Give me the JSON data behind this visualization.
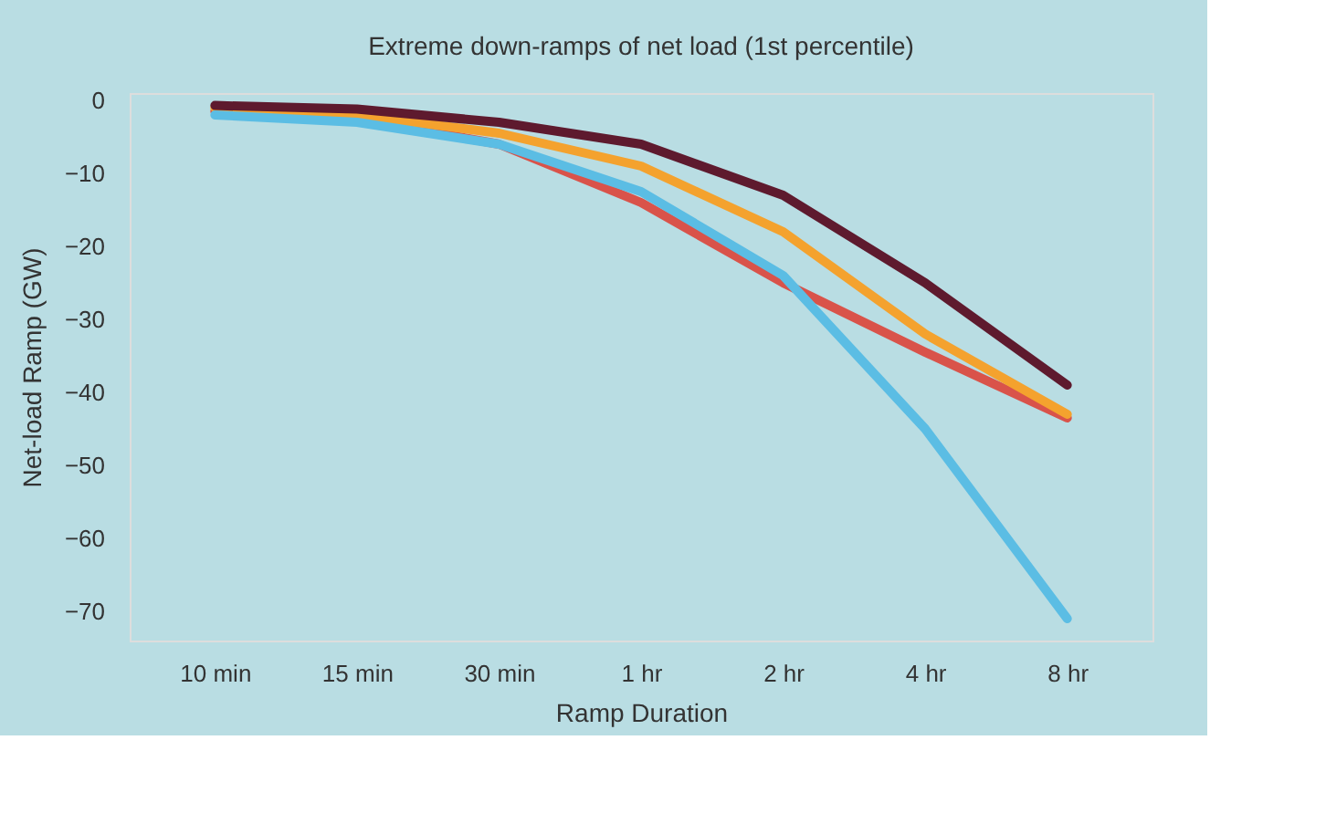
{
  "chart_data": {
    "type": "line",
    "title": "Extreme down-ramps of net load (1st percentile)",
    "xlabel": "Ramp Duration",
    "ylabel": "Net-load Ramp (GW)",
    "categories": [
      "10 min",
      "15 min",
      "30 min",
      "1 hr",
      "2 hr",
      "4 hr",
      "8 hr"
    ],
    "series": [
      {
        "color": "#d9534a",
        "values": [
          -1.5,
          -2.5,
          -6,
          -14,
          -25,
          -34.5,
          -43.5
        ]
      },
      {
        "color": "#f4a22e",
        "values": [
          -1,
          -2,
          -4.5,
          -9,
          -18,
          -32,
          -43
        ]
      },
      {
        "color": "#5bbde4",
        "values": [
          -2,
          -3,
          -6,
          -12.5,
          -24,
          -45,
          -71
        ]
      },
      {
        "color": "#5e1a2e",
        "values": [
          -0.7,
          -1.2,
          -3,
          -6,
          -13,
          -25,
          -39
        ]
      }
    ],
    "ylim": [
      -74,
      1
    ],
    "yticks": [
      0,
      -10,
      -20,
      -30,
      -40,
      -50,
      -60,
      -70
    ],
    "grid": false,
    "legend": false,
    "marker": "none",
    "line_style": "solid"
  }
}
